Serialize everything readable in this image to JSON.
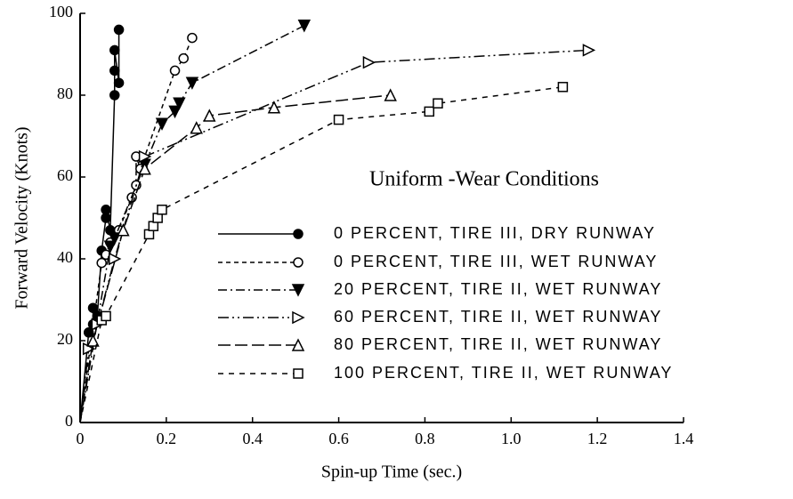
{
  "chart_data": {
    "type": "scatter",
    "xlabel": "Spin-up Time (sec.)",
    "ylabel": "Forward Velocity (Knots)",
    "legend_title": "Uniform -Wear Conditions",
    "legend": "right",
    "xlim": [
      0,
      1.4
    ],
    "ylim": [
      0,
      100
    ],
    "xticks": [
      0,
      0.2,
      0.4,
      0.6,
      0.8,
      {
        "value": 1,
        "label": "1.0"
      },
      1.2,
      1.4
    ],
    "yticks": [
      0,
      20,
      40,
      60,
      80,
      100
    ],
    "series": [
      {
        "name": "0 PERCENT, TIRE III, DRY RUNWAY",
        "color": "#000000",
        "marker": "filled-circle",
        "linestyle": "solid",
        "x": [
          0.02,
          0.03,
          0.03,
          0.04,
          0.05,
          0.06,
          0.06,
          0.07,
          0.08,
          0.08,
          0.08,
          0.09,
          0.09
        ],
        "values": [
          22,
          24,
          28,
          26,
          42,
          50,
          52,
          47,
          80,
          86,
          91,
          83,
          96
        ]
      },
      {
        "name": "0 PERCENT, TIRE III, WET RUNWAY",
        "color": "#000000",
        "marker": "open-circle",
        "linestyle": "dashed",
        "x": [
          0.05,
          0.06,
          0.07,
          0.09,
          0.12,
          0.13,
          0.13,
          0.14,
          0.22,
          0.24,
          0.26
        ],
        "values": [
          39,
          41,
          44,
          47,
          55,
          58,
          65,
          62,
          86,
          89,
          94
        ]
      },
      {
        "name": "20 PERCENT, TIRE II, WET RUNWAY",
        "color": "#000000",
        "marker": "filled-triangle-down",
        "linestyle": "dashdot",
        "x": [
          0.07,
          0.08,
          0.15,
          0.19,
          0.22,
          0.23,
          0.26,
          0.52
        ],
        "values": [
          43,
          45,
          63,
          73,
          76,
          78,
          83,
          97
        ]
      },
      {
        "name": "60 PERCENT, TIRE II, WET RUNWAY",
        "color": "#000000",
        "marker": "open-triangle-right",
        "linestyle": "dashdotdot",
        "x": [
          0.02,
          0.04,
          0.08,
          0.15,
          0.67,
          1.18
        ],
        "values": [
          18,
          24,
          40,
          65,
          88,
          91
        ]
      },
      {
        "name": "80 PERCENT, TIRE II, WET RUNWAY",
        "color": "#000000",
        "marker": "open-triangle-up",
        "linestyle": "longdash",
        "x": [
          0.03,
          0.1,
          0.15,
          0.27,
          0.3,
          0.45,
          0.72
        ],
        "values": [
          20,
          47,
          62,
          72,
          75,
          77,
          80
        ]
      },
      {
        "name": "100 PERCENT, TIRE II, WET RUNWAY",
        "color": "#000000",
        "marker": "open-square",
        "linestyle": "shortdash",
        "x": [
          0.05,
          0.06,
          0.16,
          0.17,
          0.18,
          0.19,
          0.6,
          0.81,
          0.83,
          1.12
        ],
        "values": [
          25,
          26,
          46,
          48,
          50,
          52,
          74,
          76,
          78,
          82
        ]
      }
    ]
  }
}
